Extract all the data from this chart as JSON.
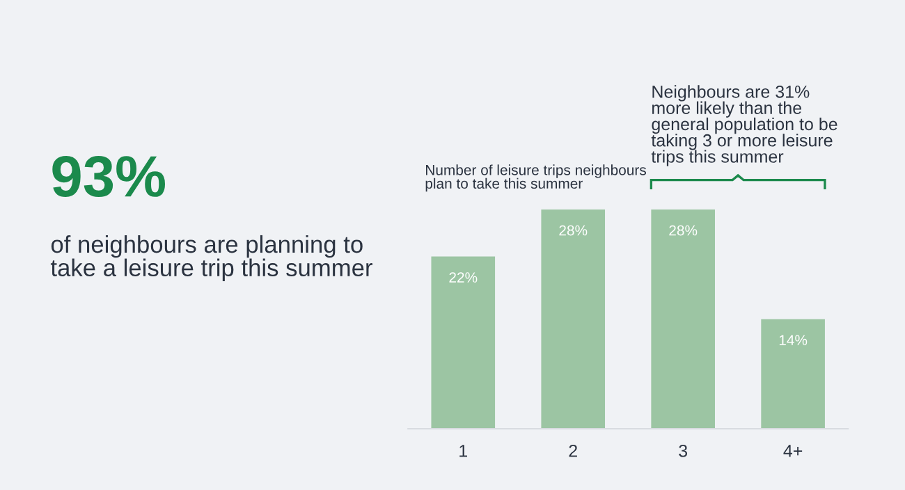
{
  "chart_data": [
    {
      "type": "other",
      "title": "93%",
      "subtitle": "of neighbours are planning to\ntake a leisure trip this summer",
      "color": "#1b8a4c"
    },
    {
      "type": "bar",
      "title": "Number of leisure trips neighbours\nplan to take this summer",
      "categories": [
        "1",
        "2",
        "3",
        "4+"
      ],
      "values": [
        22,
        28,
        28,
        14
      ],
      "value_labels": [
        "22%",
        "28%",
        "28%",
        "14%"
      ],
      "color": "#9cc5a3",
      "grid": false,
      "legend": false,
      "annotations": [
        "Neighbours are 31%\nmore likely than the\ngeneral population to be\ntaking 3 or more leisure\ntrips this summer"
      ]
    }
  ]
}
